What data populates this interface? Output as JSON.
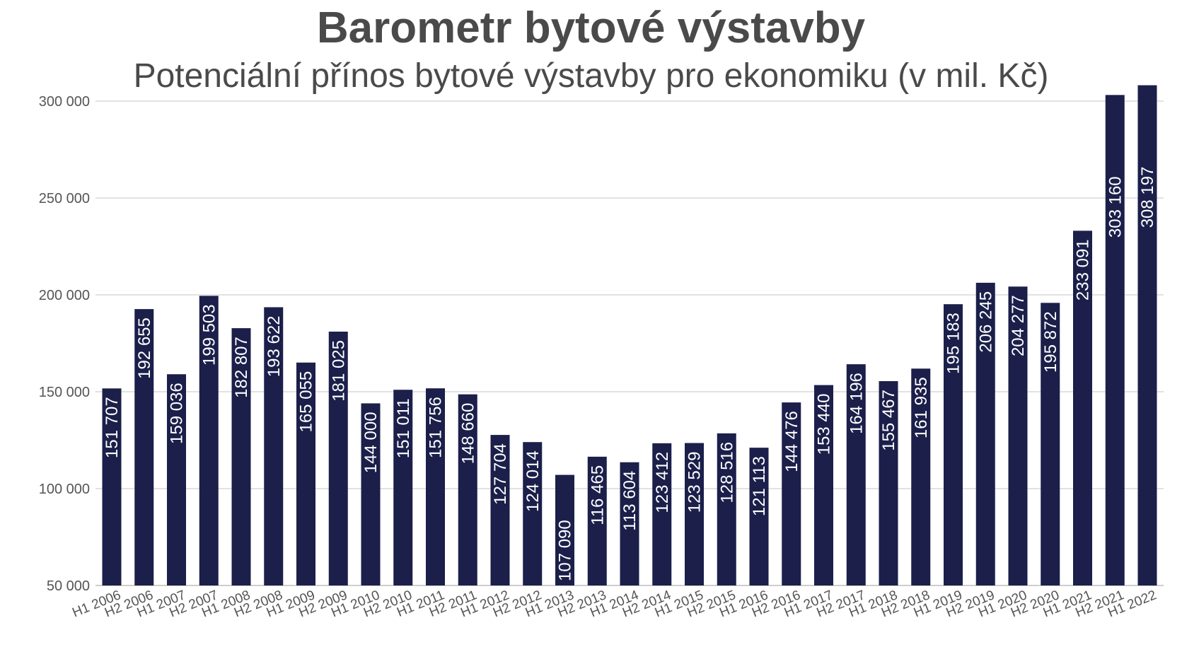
{
  "chart_data": {
    "type": "bar",
    "title": "Barometr bytové výstavby",
    "subtitle": "Potenciální přínos bytové výstavby pro ekonomiku (v mil. Kč)",
    "xlabel": "",
    "ylabel": "",
    "ylim": [
      50000,
      310000
    ],
    "yticks": [
      50000,
      100000,
      150000,
      200000,
      250000,
      300000
    ],
    "ytick_labels": [
      "50 000",
      "100 000",
      "150 000",
      "200 000",
      "250 000",
      "300 000"
    ],
    "grid": true,
    "legend": "none",
    "bar_color": "#1b1f4a",
    "categories": [
      "H1 2006",
      "H2 2006",
      "H1 2007",
      "H2 2007",
      "H1 2008",
      "H2 2008",
      "H1 2009",
      "H2 2009",
      "H1 2010",
      "H2 2010",
      "H1 2011",
      "H2 2011",
      "H1 2012",
      "H2 2012",
      "H1 2013",
      "H2 2013",
      "H1 2014",
      "H2 2014",
      "H1 2015",
      "H2 2015",
      "H1 2016",
      "H2 2016",
      "H1 2017",
      "H2 2017",
      "H1 2018",
      "H2 2018",
      "H1 2019",
      "H2 2019",
      "H1 2020",
      "H2 2020",
      "H1 2021",
      "H2 2021",
      "H1 2022"
    ],
    "values": [
      151707,
      192655,
      159036,
      199503,
      182807,
      193622,
      165055,
      181025,
      144000,
      151011,
      151756,
      148660,
      127704,
      124014,
      107090,
      116465,
      113604,
      123412,
      123529,
      128516,
      121113,
      144476,
      153440,
      164196,
      155467,
      161935,
      195183,
      206245,
      204277,
      195872,
      233091,
      303160,
      308197
    ],
    "value_labels": [
      "151 707",
      "192 655",
      "159 036",
      "199 503",
      "182 807",
      "193 622",
      "165 055",
      "181 025",
      "144 000",
      "151 011",
      "151 756",
      "148 660",
      "127 704",
      "124 014",
      "107 090",
      "116 465",
      "113 604",
      "123 412",
      "123 529",
      "128 516",
      "121 113",
      "144 476",
      "153 440",
      "164 196",
      "155 467",
      "161 935",
      "195 183",
      "206 245",
      "204 277",
      "195 872",
      "233 091",
      "303 160",
      "308 197"
    ]
  }
}
